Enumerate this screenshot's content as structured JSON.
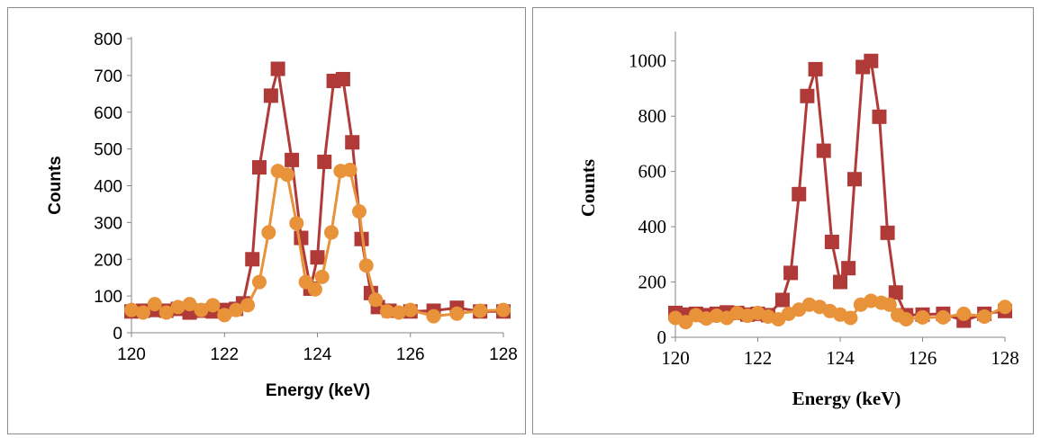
{
  "chart_data": [
    {
      "type": "line",
      "xlabel": "Energy (keV)",
      "ylabel": "Counts",
      "xlim": [
        120,
        128
      ],
      "ylim": [
        0,
        800
      ],
      "xticks": [
        "120",
        "122",
        "124",
        "126",
        "128"
      ],
      "yticks": [
        "0",
        "100",
        "200",
        "300",
        "400",
        "500",
        "600",
        "700",
        "800"
      ],
      "grid": false,
      "series": [
        {
          "marker": "square",
          "color": "#b03a38",
          "points": [
            [
              120.0,
              58
            ],
            [
              120.25,
              60
            ],
            [
              120.5,
              62
            ],
            [
              120.75,
              60
            ],
            [
              121.0,
              65
            ],
            [
              121.25,
              55
            ],
            [
              121.5,
              60
            ],
            [
              121.75,
              58
            ],
            [
              122.0,
              62
            ],
            [
              122.25,
              65
            ],
            [
              122.4,
              80
            ],
            [
              122.6,
              200
            ],
            [
              122.75,
              450
            ],
            [
              123.0,
              645
            ],
            [
              123.15,
              718
            ],
            [
              123.45,
              470
            ],
            [
              123.65,
              258
            ],
            [
              123.85,
              120
            ],
            [
              124.0,
              205
            ],
            [
              124.15,
              465
            ],
            [
              124.35,
              685
            ],
            [
              124.55,
              690
            ],
            [
              124.75,
              518
            ],
            [
              124.95,
              255
            ],
            [
              125.15,
              108
            ],
            [
              125.3,
              70
            ],
            [
              125.55,
              60
            ],
            [
              126.0,
              58
            ],
            [
              126.5,
              60
            ],
            [
              127.0,
              68
            ],
            [
              127.5,
              58
            ],
            [
              128.0,
              58
            ]
          ]
        },
        {
          "marker": "circle",
          "color": "#e8923a",
          "points": [
            [
              120.0,
              62
            ],
            [
              120.25,
              55
            ],
            [
              120.5,
              78
            ],
            [
              120.75,
              55
            ],
            [
              121.0,
              70
            ],
            [
              121.25,
              78
            ],
            [
              121.5,
              62
            ],
            [
              121.75,
              75
            ],
            [
              122.0,
              48
            ],
            [
              122.25,
              62
            ],
            [
              122.5,
              75
            ],
            [
              122.75,
              138
            ],
            [
              122.95,
              273
            ],
            [
              123.15,
              440
            ],
            [
              123.35,
              430
            ],
            [
              123.55,
              298
            ],
            [
              123.75,
              138
            ],
            [
              123.95,
              118
            ],
            [
              124.1,
              152
            ],
            [
              124.3,
              273
            ],
            [
              124.5,
              440
            ],
            [
              124.7,
              443
            ],
            [
              124.9,
              330
            ],
            [
              125.05,
              183
            ],
            [
              125.25,
              90
            ],
            [
              125.5,
              58
            ],
            [
              125.75,
              55
            ],
            [
              126.0,
              62
            ],
            [
              126.5,
              45
            ],
            [
              127.0,
              52
            ],
            [
              127.5,
              60
            ],
            [
              128.0,
              62
            ]
          ]
        }
      ]
    },
    {
      "type": "line",
      "xlabel": "Energy (keV)",
      "ylabel": "Counts",
      "xlim": [
        120,
        128
      ],
      "ylim": [
        0,
        1100
      ],
      "xticks": [
        "120",
        "122",
        "124",
        "126",
        "128"
      ],
      "yticks": [
        "0",
        "200",
        "400",
        "600",
        "800",
        "1000"
      ],
      "grid": false,
      "series": [
        {
          "marker": "square",
          "color": "#b03a38",
          "points": [
            [
              120.0,
              88
            ],
            [
              120.25,
              82
            ],
            [
              120.5,
              85
            ],
            [
              120.75,
              80
            ],
            [
              121.0,
              85
            ],
            [
              121.25,
              90
            ],
            [
              121.5,
              88
            ],
            [
              121.75,
              82
            ],
            [
              122.0,
              85
            ],
            [
              122.25,
              80
            ],
            [
              122.6,
              135
            ],
            [
              122.8,
              233
            ],
            [
              123.0,
              518
            ],
            [
              123.2,
              873
            ],
            [
              123.4,
              970
            ],
            [
              123.6,
              675
            ],
            [
              123.8,
              345
            ],
            [
              124.0,
              200
            ],
            [
              124.2,
              250
            ],
            [
              124.35,
              572
            ],
            [
              124.55,
              978
            ],
            [
              124.75,
              1000
            ],
            [
              124.95,
              798
            ],
            [
              125.15,
              378
            ],
            [
              125.35,
              162
            ],
            [
              125.6,
              80
            ],
            [
              126.0,
              82
            ],
            [
              126.5,
              85
            ],
            [
              127.0,
              60
            ],
            [
              127.5,
              85
            ],
            [
              128.0,
              95
            ]
          ]
        },
        {
          "marker": "circle",
          "color": "#e8923a",
          "points": [
            [
              120.0,
              70
            ],
            [
              120.25,
              55
            ],
            [
              120.5,
              80
            ],
            [
              120.75,
              68
            ],
            [
              121.0,
              78
            ],
            [
              121.25,
              70
            ],
            [
              121.5,
              88
            ],
            [
              121.75,
              78
            ],
            [
              122.0,
              88
            ],
            [
              122.25,
              75
            ],
            [
              122.5,
              65
            ],
            [
              122.75,
              85
            ],
            [
              123.0,
              100
            ],
            [
              123.25,
              118
            ],
            [
              123.5,
              110
            ],
            [
              123.75,
              95
            ],
            [
              124.0,
              82
            ],
            [
              124.25,
              70
            ],
            [
              124.5,
              118
            ],
            [
              124.75,
              132
            ],
            [
              125.0,
              125
            ],
            [
              125.2,
              118
            ],
            [
              125.4,
              80
            ],
            [
              125.6,
              65
            ],
            [
              126.0,
              72
            ],
            [
              126.5,
              72
            ],
            [
              127.0,
              85
            ],
            [
              127.5,
              75
            ],
            [
              128.0,
              110
            ]
          ]
        }
      ]
    }
  ]
}
